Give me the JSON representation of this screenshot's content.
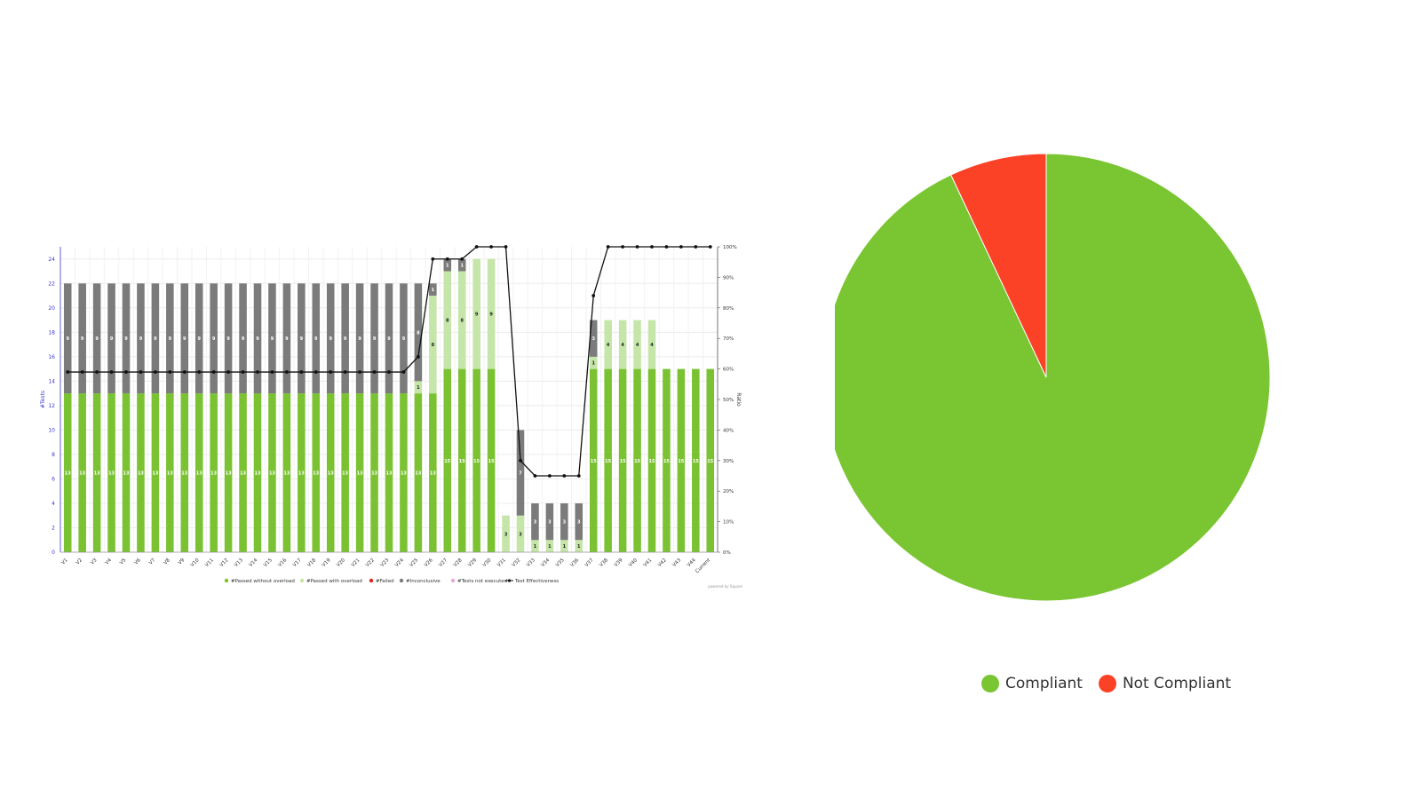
{
  "chart_data": [
    {
      "type": "bar",
      "stacked": true,
      "categories": [
        "V1",
        "V2",
        "V3",
        "V4",
        "V5",
        "V6",
        "V7",
        "V8",
        "V9",
        "V10",
        "V11",
        "V12",
        "V13",
        "V14",
        "V15",
        "V16",
        "V17",
        "V18",
        "V19",
        "V20",
        "V21",
        "V22",
        "V23",
        "V24",
        "V25",
        "V26",
        "V27",
        "V28",
        "V29",
        "V30",
        "V31",
        "V32",
        "V33",
        "V34",
        "V35",
        "V36",
        "V37",
        "V38",
        "V39",
        "V40",
        "V41",
        "V42",
        "V43",
        "V44",
        "Current"
      ],
      "series": [
        {
          "name": "#Passed without overload",
          "color": "#7ac232",
          "values": [
            13,
            13,
            13,
            13,
            13,
            13,
            13,
            13,
            13,
            13,
            13,
            13,
            13,
            13,
            13,
            13,
            13,
            13,
            13,
            13,
            13,
            13,
            13,
            13,
            13,
            13,
            15,
            15,
            15,
            15,
            0,
            0,
            0,
            0,
            0,
            0,
            15,
            15,
            15,
            15,
            15,
            15,
            15,
            15,
            15
          ]
        },
        {
          "name": "#Passed with overload",
          "color": "#c5e6a8",
          "values": [
            0,
            0,
            0,
            0,
            0,
            0,
            0,
            0,
            0,
            0,
            0,
            0,
            0,
            0,
            0,
            0,
            0,
            0,
            0,
            0,
            0,
            0,
            0,
            0,
            1,
            8,
            8,
            8,
            9,
            9,
            3,
            3,
            1,
            1,
            1,
            1,
            1,
            4,
            4,
            4,
            4,
            0,
            0,
            0,
            0
          ]
        },
        {
          "name": "#Failed",
          "color": "#e0241d",
          "values": [
            0,
            0,
            0,
            0,
            0,
            0,
            0,
            0,
            0,
            0,
            0,
            0,
            0,
            0,
            0,
            0,
            0,
            0,
            0,
            0,
            0,
            0,
            0,
            0,
            0,
            0,
            0,
            0,
            0,
            0,
            0,
            0,
            0,
            0,
            0,
            0,
            0,
            0,
            0,
            0,
            0,
            0,
            0,
            0,
            0
          ]
        },
        {
          "name": "#Inconclusive",
          "color": "#7b7b7b",
          "values": [
            9,
            9,
            9,
            9,
            9,
            9,
            9,
            9,
            9,
            9,
            9,
            9,
            9,
            9,
            9,
            9,
            9,
            9,
            9,
            9,
            9,
            9,
            9,
            9,
            8,
            1,
            1,
            1,
            0,
            0,
            0,
            7,
            3,
            3,
            3,
            3,
            3,
            0,
            0,
            0,
            0,
            0,
            0,
            0,
            0
          ]
        },
        {
          "name": "#Tests not executed",
          "color": "#e8a8d8",
          "values": [
            0,
            0,
            0,
            0,
            0,
            0,
            0,
            0,
            0,
            0,
            0,
            0,
            0,
            0,
            0,
            0,
            0,
            0,
            0,
            0,
            0,
            0,
            0,
            0,
            0,
            0,
            0,
            0,
            0,
            0,
            0,
            0,
            0,
            0,
            0,
            0,
            0,
            0,
            0,
            0,
            0,
            0,
            0,
            0,
            0
          ]
        },
        {
          "name": "Test Effectiveness",
          "type": "line",
          "axis": "right",
          "color": "#111111",
          "values": [
            59,
            59,
            59,
            59,
            59,
            59,
            59,
            59,
            59,
            59,
            59,
            59,
            59,
            59,
            59,
            59,
            59,
            59,
            59,
            59,
            59,
            59,
            59,
            59,
            64,
            96,
            96,
            96,
            100,
            100,
            100,
            30,
            25,
            25,
            25,
            25,
            84,
            100,
            100,
            100,
            100,
            100,
            100,
            100,
            100
          ]
        }
      ],
      "ylabel": "#Tests",
      "ylim": [
        0,
        25
      ],
      "yticks": [
        0,
        2,
        4,
        6,
        8,
        10,
        12,
        14,
        16,
        18,
        20,
        22,
        24
      ],
      "y2label": "Ratio",
      "y2lim": [
        0,
        100
      ],
      "y2ticks": [
        "0%",
        "10%",
        "20%",
        "30%",
        "40%",
        "50%",
        "60%",
        "70%",
        "80%",
        "90%",
        "100%"
      ],
      "grid": true,
      "legend": "bottom",
      "credit": "powered by Squore"
    },
    {
      "type": "pie",
      "labels": [
        "Compliant",
        "Not Compliant"
      ],
      "values": [
        93,
        7
      ],
      "colors": [
        "#7ac532",
        "#fc4226"
      ],
      "legend": "bottom"
    }
  ]
}
